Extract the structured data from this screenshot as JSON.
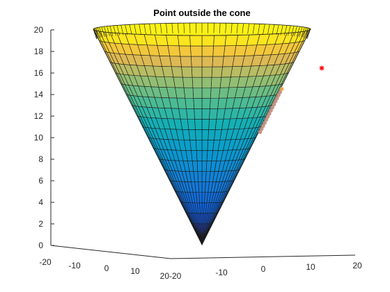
{
  "chart_data": {
    "type": "surface3d",
    "title": "Point outside the cone",
    "xlabel": "",
    "ylabel": "",
    "zlabel": "",
    "xlim": [
      -20,
      20
    ],
    "ylim": [
      -20,
      20
    ],
    "zlim": [
      0,
      20
    ],
    "x_ticks": [
      "-20",
      "-10",
      "0",
      "10",
      "20"
    ],
    "y_ticks": [
      "-20",
      "-10",
      "0",
      "10",
      "20"
    ],
    "z_ticks": [
      "0",
      "2",
      "4",
      "6",
      "8",
      "10",
      "12",
      "14",
      "16",
      "18",
      "20"
    ],
    "surface": {
      "shape": "cone",
      "apex_z": 0,
      "top_z": 20,
      "top_radius": 20,
      "colormap": "parula"
    },
    "outside_point": {
      "marker": "*",
      "color": "#ff0000",
      "x": 18,
      "y": 18,
      "z": 16
    },
    "nearest_points_line": {
      "color": "#e6a03c",
      "z_from": 10.5,
      "z_to": 14.5
    }
  }
}
